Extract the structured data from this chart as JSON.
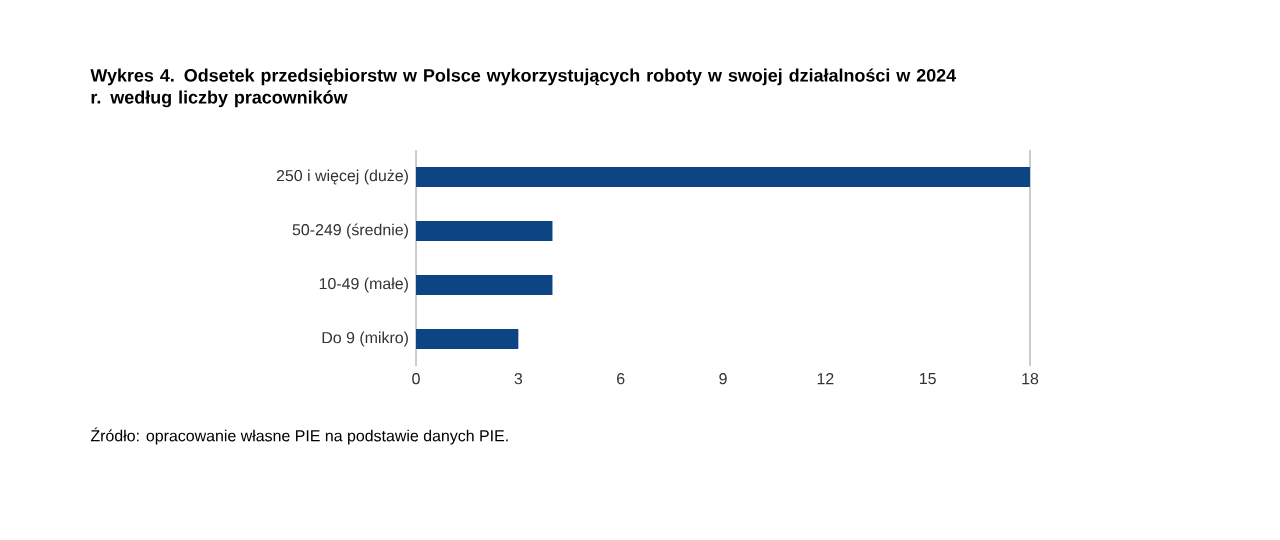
{
  "chart_data": {
    "type": "bar",
    "orientation": "horizontal",
    "title": "Wykres 4.  Odsetek przedsiębiorstw w Polsce wykorzystujących roboty w swojej działalności w 2024 r. według liczby pracowników",
    "categories": [
      "250 i więcej (duże)",
      "50-249 (średnie)",
      "10-49 (małe)",
      "Do 9 (mikro)"
    ],
    "values": [
      18,
      4,
      4,
      3
    ],
    "color": "#0d4483",
    "xlim": [
      0,
      18
    ],
    "xticks": [
      0,
      3,
      6,
      9,
      12,
      15,
      18
    ],
    "grid": false,
    "annotations": [
      "Źródło: opracowanie własne PIE na podstawie danych PIE."
    ]
  }
}
